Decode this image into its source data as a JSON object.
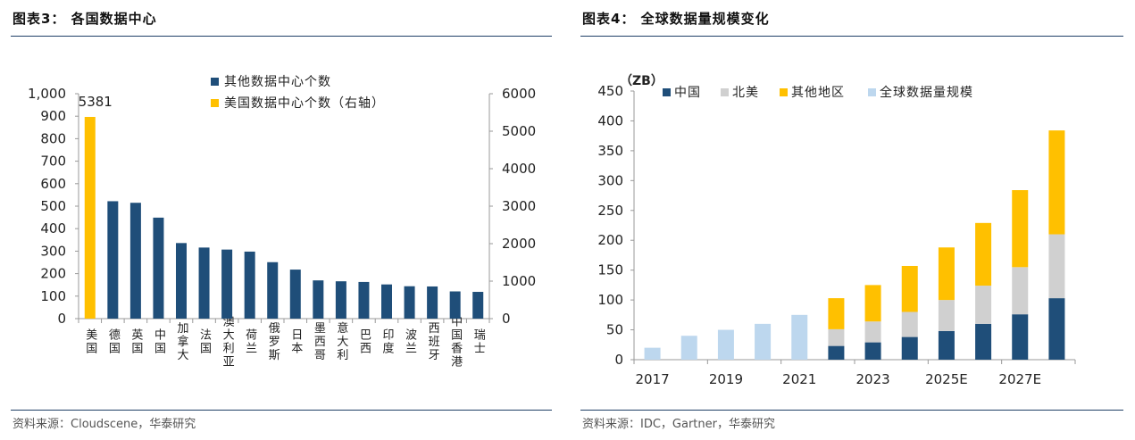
{
  "left_panel": {
    "title": "图表3：  各国数据中心",
    "source": "资料来源：Cloudscene，华泰研究"
  },
  "right_panel": {
    "title": "图表4：  全球数据量规模变化",
    "source": "资料来源：IDC，Gartner，华泰研究"
  },
  "colors": {
    "navy": "#1f4e79",
    "gold": "#ffc000",
    "gray": "#d0d0d0",
    "lightblue": "#bdd7ee",
    "rule": "#1f3f66"
  },
  "chart_data": [
    {
      "type": "bar",
      "title": "",
      "categories": [
        "美国",
        "德国",
        "英国",
        "中国",
        "加拿大",
        "法国",
        "澳大利亚",
        "荷兰",
        "俄罗斯",
        "日本",
        "墨西哥",
        "意大利",
        "巴西",
        "印度",
        "波兰",
        "西班牙",
        "中国香港",
        "瑞士"
      ],
      "series": [
        {
          "name": "其他数据中心个数",
          "axis": "left",
          "color": "#1f4e79",
          "values": [
            null,
            522,
            515,
            449,
            336,
            316,
            307,
            298,
            251,
            218,
            170,
            166,
            163,
            152,
            144,
            143,
            121,
            119
          ]
        },
        {
          "name": "美国数据中心个数（右轴）",
          "axis": "right",
          "color": "#ffc000",
          "values": [
            5381,
            null,
            null,
            null,
            null,
            null,
            null,
            null,
            null,
            null,
            null,
            null,
            null,
            null,
            null,
            null,
            null,
            null
          ]
        }
      ],
      "data_labels": [
        {
          "text": "5381",
          "category": "美国"
        }
      ],
      "y_left": {
        "ylim": [
          0,
          1000
        ],
        "ticks": [
          "0",
          "100",
          "200",
          "300",
          "400",
          "500",
          "600",
          "700",
          "800",
          "900",
          "1,000"
        ]
      },
      "y_right": {
        "ylim": [
          0,
          6000
        ],
        "ticks": [
          "0",
          "1000",
          "2000",
          "3000",
          "4000",
          "5000",
          "6000"
        ]
      },
      "legend_position": "top-center",
      "grid": false
    },
    {
      "type": "bar",
      "stacked": true,
      "title": "",
      "ylabel": "（ZB）",
      "categories": [
        "2017",
        "2018",
        "2019",
        "2020",
        "2021",
        "2022",
        "2023",
        "2024",
        "2025E",
        "2026E",
        "2027E",
        "2028E"
      ],
      "x_tick_labels": [
        "2017",
        "2019",
        "2021",
        "2023",
        "2025E",
        "2027E"
      ],
      "series": [
        {
          "name": "中国",
          "color": "#1f4e79",
          "values": [
            null,
            null,
            null,
            null,
            null,
            23,
            29,
            38,
            48,
            60,
            76,
            103
          ]
        },
        {
          "name": "北美",
          "color": "#d0d0d0",
          "values": [
            null,
            null,
            null,
            null,
            null,
            28,
            35,
            42,
            52,
            64,
            79,
            107
          ]
        },
        {
          "name": "其他地区",
          "color": "#ffc000",
          "values": [
            null,
            null,
            null,
            null,
            null,
            52,
            61,
            77,
            88,
            105,
            129,
            174
          ]
        },
        {
          "name": "全球数据量规模",
          "color": "#bdd7ee",
          "values": [
            20,
            40,
            50,
            60,
            75,
            null,
            null,
            null,
            null,
            null,
            null,
            null
          ]
        }
      ],
      "ylim": [
        0,
        450
      ],
      "y_ticks": [
        "0",
        "50",
        "100",
        "150",
        "200",
        "250",
        "300",
        "350",
        "400",
        "450"
      ],
      "legend_position": "top",
      "grid": false
    }
  ]
}
